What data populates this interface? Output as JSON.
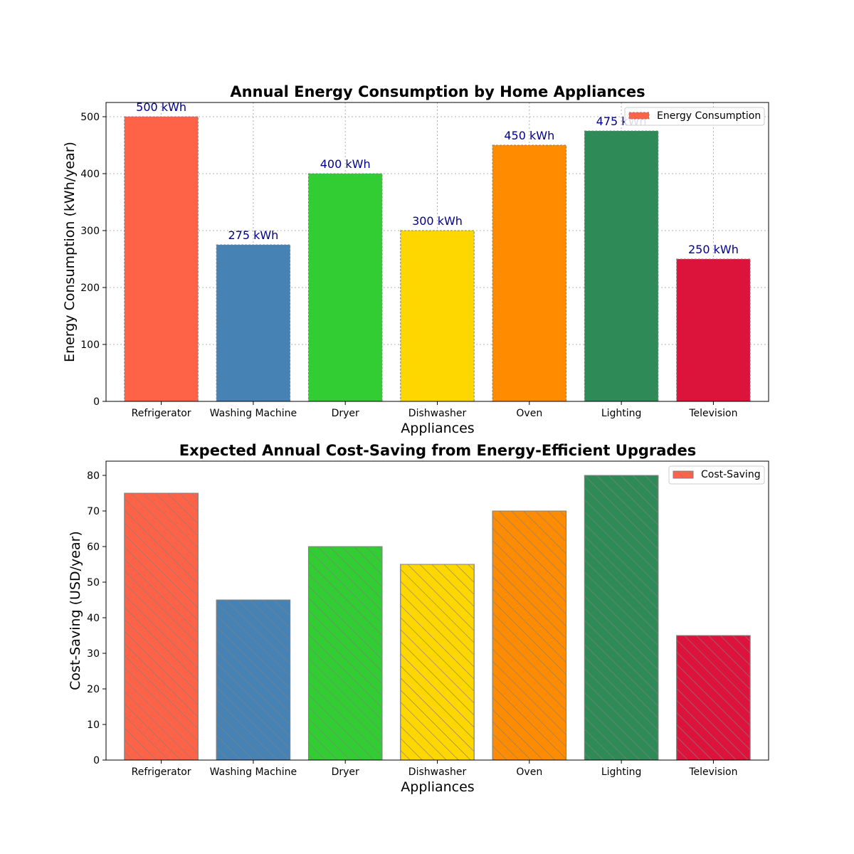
{
  "chart_data": [
    {
      "type": "bar",
      "title": "Annual Energy Consumption by Home Appliances",
      "xlabel": "Appliances",
      "ylabel": "Energy Consumption (kWh/year)",
      "categories": [
        "Refrigerator",
        "Washing Machine",
        "Dryer",
        "Dishwasher",
        "Oven",
        "Lighting",
        "Television"
      ],
      "series": [
        {
          "name": "Energy Consumption",
          "values": [
            500,
            275,
            400,
            300,
            450,
            475,
            250
          ]
        }
      ],
      "data_labels": [
        "500 kWh",
        "275 kWh",
        "400 kWh",
        "300 kWh",
        "450 kWh",
        "475 kWh",
        "250 kWh"
      ],
      "colors": [
        "#ff6347",
        "#4682b4",
        "#32cd32",
        "#ffd700",
        "#ff8c00",
        "#2e8b57",
        "#dc143c"
      ],
      "ylim": [
        0,
        525
      ],
      "yticks": [
        0,
        100,
        200,
        300,
        400,
        500
      ],
      "grid": true,
      "legend_position": "top-right",
      "bar_style": "dashed-edge"
    },
    {
      "type": "bar",
      "title": "Expected Annual Cost-Saving from Energy-Efficient Upgrades",
      "xlabel": "Appliances",
      "ylabel": "Cost-Saving (USD/year)",
      "categories": [
        "Refrigerator",
        "Washing Machine",
        "Dryer",
        "Dishwasher",
        "Oven",
        "Lighting",
        "Television"
      ],
      "series": [
        {
          "name": "Cost-Saving",
          "values": [
            75,
            45,
            60,
            55,
            70,
            80,
            35
          ]
        }
      ],
      "colors": [
        "#ff6347",
        "#4682b4",
        "#32cd32",
        "#ffd700",
        "#ff8c00",
        "#2e8b57",
        "#dc143c"
      ],
      "ylim": [
        0,
        84
      ],
      "yticks": [
        0,
        10,
        20,
        30,
        40,
        50,
        60,
        70,
        80
      ],
      "grid": false,
      "legend_position": "top-right",
      "bar_style": "hatched"
    }
  ],
  "styles": {
    "edge_color": "#808080",
    "grid_color": "#b0b0b0",
    "data_label_color": "#00008b",
    "text_color": "#000000"
  }
}
